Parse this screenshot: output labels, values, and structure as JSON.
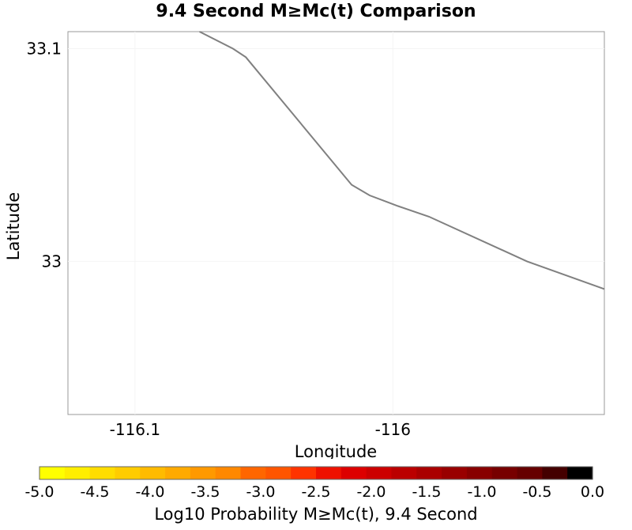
{
  "chart_data": {
    "type": "line",
    "title": "9.4 Second M≥Mc(t) Comparison",
    "xlabel": "Longitude",
    "ylabel": "Latitude",
    "xlim": [
      -116.126,
      -115.918
    ],
    "ylim": [
      32.928,
      33.108
    ],
    "xticks": [
      -116.1,
      -116.0
    ],
    "xtick_labels": [
      "-116.1",
      "-116"
    ],
    "yticks": [
      33.0,
      33.1
    ],
    "ytick_labels": [
      "33",
      "33.1"
    ],
    "series": [
      {
        "x": [
          -116.075,
          -116.062,
          -116.057,
          -116.016,
          -116.009,
          -115.998,
          -115.986,
          -115.948,
          -115.918
        ],
        "y": [
          33.108,
          33.1,
          33.096,
          33.036,
          33.031,
          33.026,
          33.021,
          33.0,
          32.987
        ],
        "color": "#808080"
      }
    ],
    "colorbar": {
      "label": "Log10 Probability M≥Mc(t), 9.4 Second",
      "min": -5.0,
      "max": 0.0,
      "tick_labels": [
        "-5.0",
        "-4.5",
        "-4.0",
        "-3.5",
        "-3.0",
        "-2.5",
        "-2.0",
        "-1.5",
        "-1.0",
        "-0.5",
        "0.0"
      ],
      "colors": [
        "#ffff00",
        "#ffee00",
        "#ffdd00",
        "#ffcc00",
        "#ffbb00",
        "#ffaa00",
        "#ff9900",
        "#ff8800",
        "#ff6600",
        "#ff5500",
        "#ff3300",
        "#ee1100",
        "#dd0000",
        "#cc0000",
        "#bb0000",
        "#aa0000",
        "#990000",
        "#880000",
        "#770000",
        "#660000",
        "#440000",
        "#000000"
      ]
    }
  }
}
